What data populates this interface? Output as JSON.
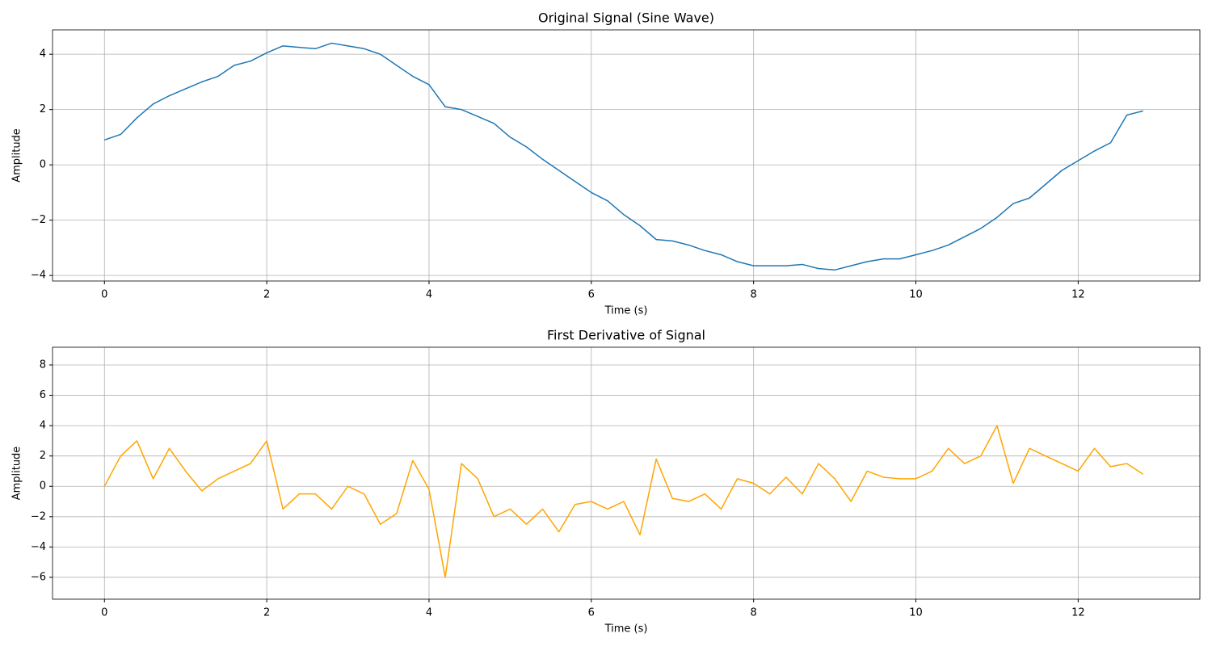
{
  "chart_data": [
    {
      "type": "line",
      "title": "Original Signal (Sine Wave)",
      "x_label": "Time (s)",
      "y_label": "Amplitude",
      "color": "#1f77b4",
      "grid": true,
      "x": [
        0,
        0.2,
        0.4,
        0.6,
        0.8,
        1.0,
        1.2,
        1.4,
        1.6,
        1.8,
        2.0,
        2.2,
        2.4,
        2.6,
        2.8,
        3.0,
        3.2,
        3.4,
        3.6,
        3.8,
        4.0,
        4.2,
        4.4,
        4.6,
        4.8,
        5.0,
        5.2,
        5.4,
        5.6,
        5.8,
        6.0,
        6.2,
        6.4,
        6.6,
        6.8,
        7.0,
        7.2,
        7.4,
        7.6,
        7.8,
        8.0,
        8.2,
        8.4,
        8.6,
        8.8,
        9.0,
        9.2,
        9.4,
        9.6,
        9.8,
        10.0,
        10.2,
        10.4,
        10.6,
        10.8,
        11.0,
        11.2,
        11.4,
        11.6,
        11.8,
        12.0,
        12.2,
        12.4,
        12.6,
        12.8
      ],
      "values": [
        0.9,
        1.1,
        1.7,
        2.2,
        2.5,
        2.75,
        3.0,
        3.2,
        3.6,
        3.75,
        4.05,
        4.3,
        4.25,
        4.2,
        4.4,
        4.3,
        4.2,
        4.0,
        3.6,
        3.2,
        2.9,
        2.1,
        2.0,
        1.75,
        1.5,
        1.0,
        0.65,
        0.2,
        -0.2,
        -0.6,
        -1.0,
        -1.3,
        -1.8,
        -2.2,
        -2.7,
        -2.75,
        -2.9,
        -3.1,
        -3.25,
        -3.5,
        -3.65,
        -3.65,
        -3.65,
        -3.6,
        -3.75,
        -3.8,
        -3.65,
        -3.5,
        -3.4,
        -3.4,
        -3.25,
        -3.1,
        -2.9,
        -2.6,
        -2.3,
        -1.9,
        -1.4,
        -1.2,
        -0.7,
        -0.2,
        0.15,
        0.5,
        0.8,
        1.8,
        1.95
      ],
      "xlim": [
        -0.64,
        13.5
      ],
      "xticks": [
        0,
        2,
        4,
        6,
        8,
        10,
        12
      ],
      "ylim": [
        -4.2,
        4.88
      ],
      "yticks": [
        {
          "value": -4,
          "label": "−4"
        },
        {
          "value": -2,
          "label": "−2"
        },
        0,
        2,
        4
      ]
    },
    {
      "type": "line",
      "title": "First Derivative of Signal",
      "x_label": "Time (s)",
      "y_label": "Amplitude",
      "color": "orange",
      "grid": true,
      "x": [
        0,
        0.2,
        0.4,
        0.6,
        0.8,
        1.0,
        1.2,
        1.4,
        1.6,
        1.8,
        2.0,
        2.2,
        2.4,
        2.6,
        2.8,
        3.0,
        3.2,
        3.4,
        3.6,
        3.8,
        4.0,
        4.2,
        4.4,
        4.6,
        4.8,
        5.0,
        5.2,
        5.4,
        5.6,
        5.8,
        6.0,
        6.2,
        6.4,
        6.6,
        6.8,
        7.0,
        7.2,
        7.4,
        7.6,
        7.8,
        8.0,
        8.2,
        8.4,
        8.6,
        8.8,
        9.0,
        9.2,
        9.4,
        9.6,
        9.8,
        10.0,
        10.2,
        10.4,
        10.6,
        10.8,
        11.0,
        11.2,
        11.4,
        11.6,
        11.8,
        12.0,
        12.2,
        12.4,
        12.6,
        12.8
      ],
      "values": [
        0,
        2,
        3,
        0.5,
        2.5,
        1.0,
        -0.3,
        0.5,
        1.0,
        1.5,
        3.0,
        -1.5,
        -0.5,
        -0.5,
        -1.5,
        0,
        -0.5,
        -2.5,
        -1.8,
        1.7,
        -0.2,
        -6.0,
        1.5,
        0.5,
        -2.0,
        -1.5,
        -2.5,
        -1.5,
        -3.0,
        -1.2,
        -1.0,
        -1.5,
        -1.0,
        -3.2,
        1.8,
        -0.8,
        -1.0,
        -0.5,
        -1.5,
        0.5,
        0.2,
        -0.5,
        0.6,
        -0.5,
        1.5,
        0.5,
        -1.0,
        1.0,
        0.6,
        0.5,
        0.5,
        1.0,
        2.5,
        1.5,
        2.0,
        4.0,
        0.2,
        2.5,
        2.0,
        1.5,
        1.0,
        2.5,
        1.3,
        1.5,
        0.8
      ],
      "xlim": [
        -0.64,
        13.5
      ],
      "xticks": [
        0,
        2,
        4,
        6,
        8,
        10,
        12
      ],
      "ylim": [
        -7.44,
        9.17
      ],
      "yticks": [
        {
          "value": -6,
          "label": "−6"
        },
        {
          "value": -4,
          "label": "−4"
        },
        {
          "value": -2,
          "label": "−2"
        },
        0,
        2,
        4,
        6,
        8
      ]
    }
  ]
}
